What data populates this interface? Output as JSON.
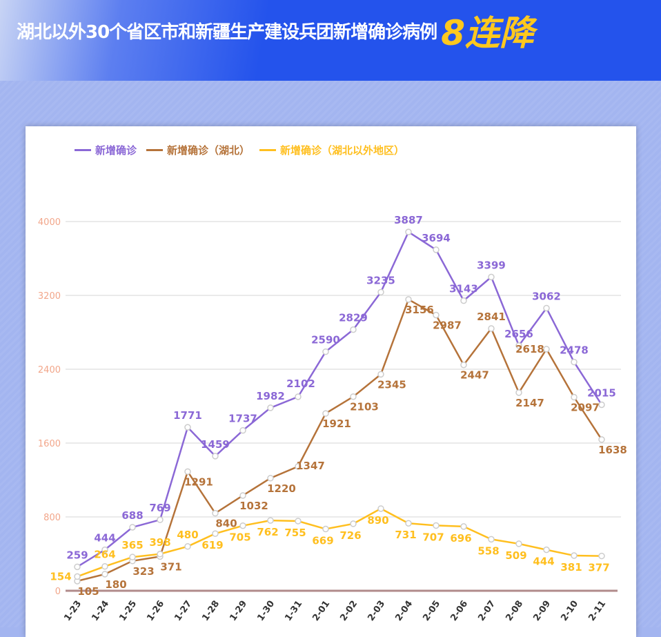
{
  "header": {
    "title": "湖北以外30个省区市和新疆生产建设兵团新增确诊病例",
    "title_emphasis": "8连降"
  },
  "chart_data": {
    "type": "line",
    "title": "湖北以外30个省区市和新疆生产建设兵团新增确诊病例8连降",
    "categories": [
      "1-23",
      "1-24",
      "1-25",
      "1-26",
      "1-27",
      "1-28",
      "1-29",
      "1-30",
      "1-31",
      "2-01",
      "2-02",
      "2-03",
      "2-04",
      "2-05",
      "2-06",
      "2-07",
      "2-08",
      "2-09",
      "2-10",
      "2-11"
    ],
    "series": [
      {
        "name": "新增确诊",
        "color": "#8b68d6",
        "values": [
          259,
          444,
          688,
          769,
          1771,
          1459,
          1737,
          1982,
          2102,
          2590,
          2829,
          3235,
          3887,
          3694,
          3143,
          3399,
          2656,
          3062,
          2478,
          2015
        ]
      },
      {
        "name": "新增确诊（湖北）",
        "color": "#b5733a",
        "values": [
          105,
          180,
          323,
          371,
          1291,
          840,
          1032,
          1220,
          1347,
          1921,
          2103,
          2345,
          3156,
          2987,
          2447,
          2841,
          2147,
          2618,
          2097,
          1638
        ]
      },
      {
        "name": "新增确诊（湖北以外地区）",
        "color": "#ffbf1f",
        "values": [
          154,
          264,
          365,
          398,
          480,
          619,
          705,
          762,
          755,
          669,
          726,
          890,
          731,
          707,
          696,
          558,
          509,
          444,
          381,
          377
        ]
      }
    ],
    "yticks": [
      "0",
      "800",
      "1600",
      "2400",
      "3200",
      "4000"
    ],
    "ylim": [
      0,
      4000
    ],
    "grid": true,
    "legend": "top-left",
    "xlabel": "",
    "ylabel": ""
  }
}
